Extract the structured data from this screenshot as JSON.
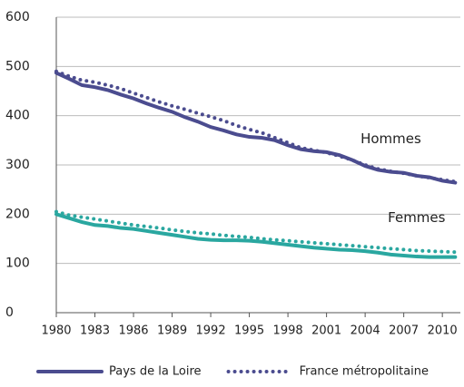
{
  "chart_data": {
    "type": "line",
    "x": [
      1980,
      1981,
      1982,
      1983,
      1984,
      1985,
      1986,
      1987,
      1988,
      1989,
      1990,
      1991,
      1992,
      1993,
      1994,
      1995,
      1996,
      1997,
      1998,
      1999,
      2000,
      2001,
      2002,
      2003,
      2004,
      2005,
      2006,
      2007,
      2008,
      2009,
      2010,
      2011
    ],
    "xlim": [
      1980,
      2011.4
    ],
    "xticks": [
      1980,
      1983,
      1986,
      1989,
      1992,
      1995,
      1998,
      2001,
      2004,
      2007,
      2010
    ],
    "ylim": [
      0,
      600
    ],
    "yticks": [
      0,
      100,
      200,
      300,
      400,
      500,
      600
    ],
    "grid": true,
    "legend": "bottom",
    "series": [
      {
        "name": "Pays de la Loire",
        "color": "#4b4c8f",
        "dash": "solid",
        "values": [
          487,
          475,
          462,
          458,
          452,
          443,
          435,
          425,
          416,
          408,
          397,
          388,
          377,
          370,
          362,
          357,
          355,
          350,
          340,
          332,
          328,
          326,
          320,
          310,
          298,
          290,
          286,
          284,
          278,
          275,
          268,
          264
        ]
      },
      {
        "name": "France métropolitaine",
        "color": "#4b4c8f",
        "dash": "dotted",
        "values": [
          490,
          480,
          472,
          468,
          462,
          455,
          446,
          437,
          428,
          420,
          413,
          405,
          398,
          390,
          380,
          372,
          365,
          355,
          345,
          335,
          330,
          325,
          318,
          310,
          300,
          292,
          287,
          283,
          278,
          274,
          270,
          266
        ]
      },
      {
        "name": "Pays de la Loire",
        "color": "#2aa7a0",
        "dash": "solid",
        "values": [
          200,
          192,
          184,
          178,
          176,
          172,
          170,
          166,
          162,
          158,
          154,
          150,
          148,
          147,
          147,
          146,
          144,
          141,
          138,
          135,
          132,
          130,
          128,
          127,
          125,
          122,
          118,
          116,
          114,
          113,
          113,
          113
        ]
      },
      {
        "name": "France métropolitaine",
        "color": "#2aa7a0",
        "dash": "dotted",
        "values": [
          205,
          198,
          194,
          190,
          186,
          182,
          178,
          175,
          172,
          168,
          165,
          162,
          160,
          157,
          155,
          153,
          150,
          148,
          146,
          144,
          142,
          140,
          138,
          136,
          134,
          132,
          130,
          128,
          126,
          125,
          124,
          123
        ]
      }
    ],
    "annotations": [
      "Hommes",
      "Femmes"
    ]
  }
}
